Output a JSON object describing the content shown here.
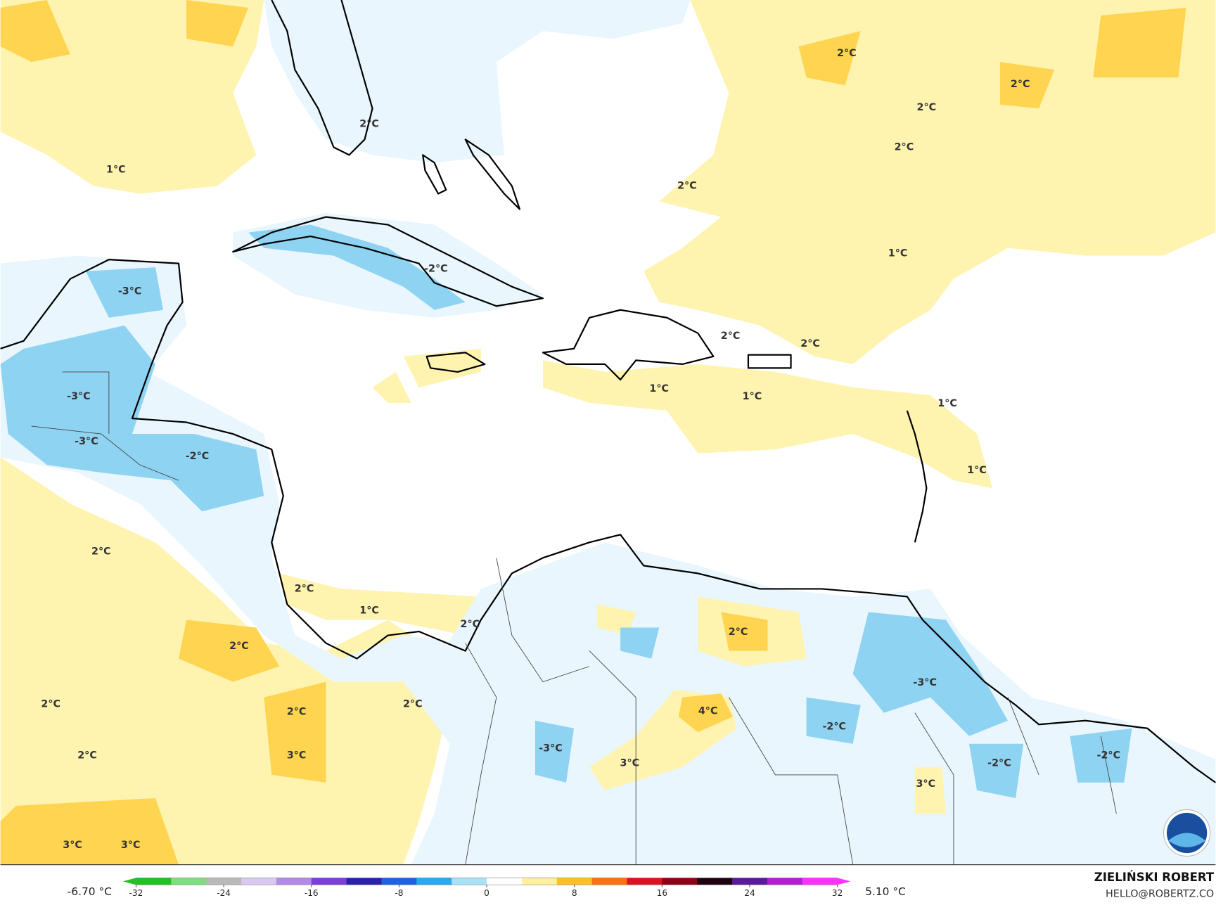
{
  "map": {
    "contour_labels": [
      "2°C",
      "2°C",
      "2°C",
      "2°C",
      "2°C",
      "1°C",
      "2°C",
      "1°C",
      "-3°C",
      "-2°C",
      "2°C",
      "2°C",
      "1°C",
      "1°C",
      "1°C",
      "-3°C",
      "-3°C",
      "-2°C",
      "1°C",
      "2°C",
      "2°C",
      "1°C",
      "2°C",
      "2°C",
      "2°C",
      "2°C",
      "2°C",
      "2°C",
      "4°C",
      "-3°C",
      "-2°C",
      "-3°C",
      "3°C",
      "2°C",
      "3°C",
      "3°C",
      "-2°C",
      "-2°C",
      "3°C",
      "3°C"
    ],
    "colorbar": {
      "min_label": "-6.70 °C",
      "max_label": "5.10 °C",
      "range": [
        -32,
        32
      ],
      "ticks": [
        -32,
        -24,
        -16,
        -8,
        0,
        8,
        16,
        24,
        32
      ],
      "colors": [
        "#22c022",
        "#7fdc7f",
        "#b9b9b9",
        "#d9c9f0",
        "#b38be6",
        "#7b3fd6",
        "#2b1fb0",
        "#1f5fe6",
        "#2aa8f0",
        "#a8e2f8",
        "#ffffff",
        "#fff0a0",
        "#ffc020",
        "#ff7010",
        "#e01020",
        "#900018",
        "#200010",
        "#5a1a9a",
        "#b020d0",
        "#ff30ff"
      ]
    },
    "credit": {
      "name": "ZIELIŃSKI ROBERT",
      "email": "HELLO@ROBERTZ.CO"
    }
  }
}
